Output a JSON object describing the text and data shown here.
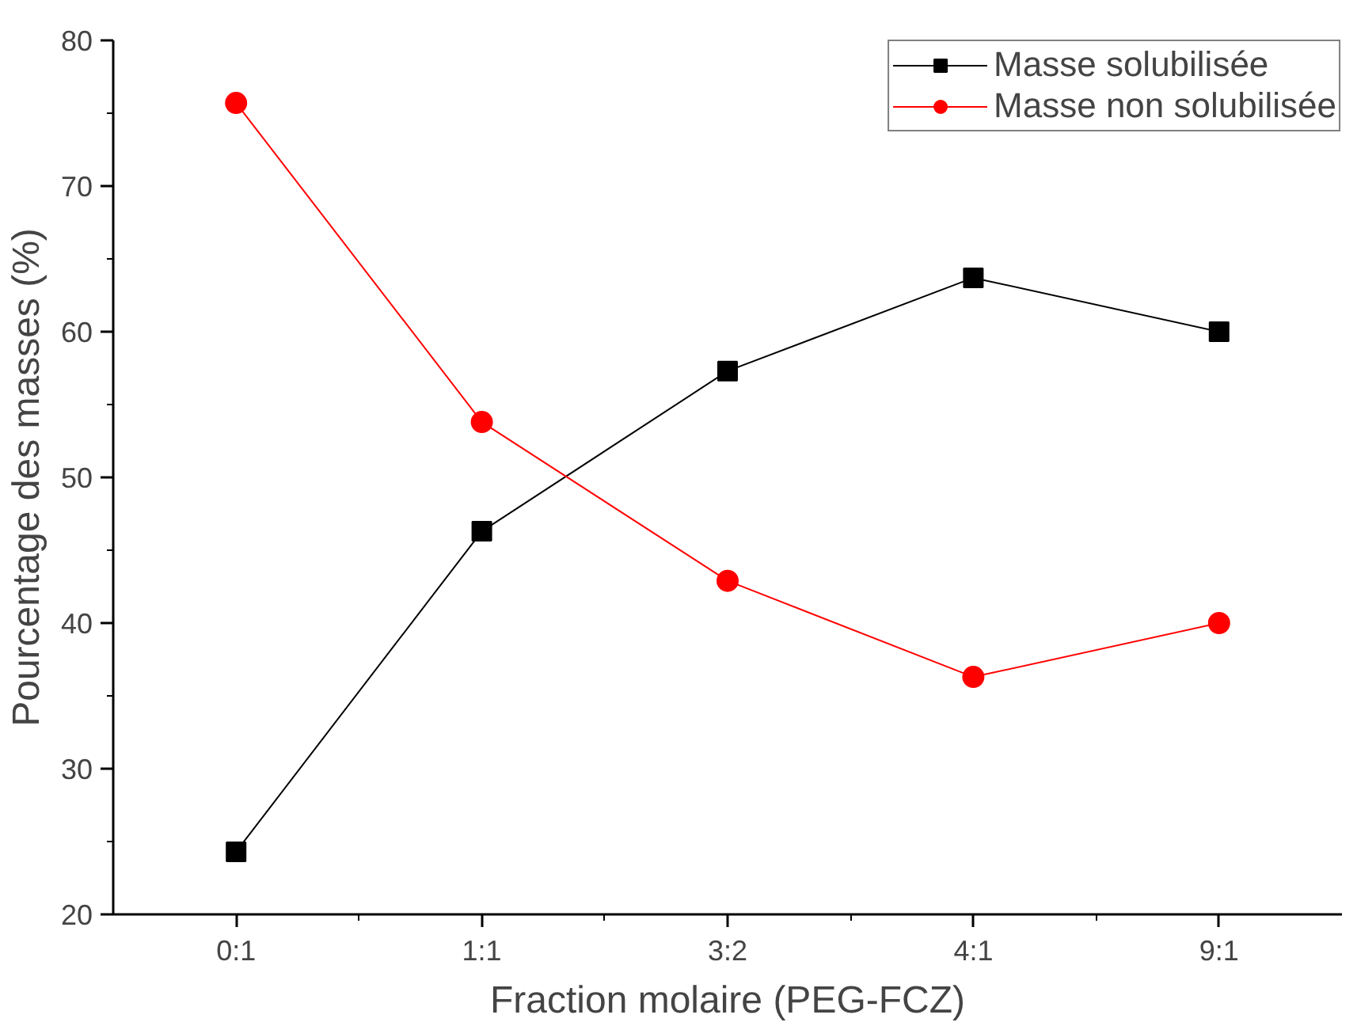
{
  "chart_data": {
    "type": "line",
    "xlabel": "Fraction molaire (PEG-FCZ)",
    "ylabel": "Pourcentage des masses (%)",
    "categories": [
      "0:1",
      "1:1",
      "3:2",
      "4:1",
      "9:1"
    ],
    "series": [
      {
        "name": "Masse solubilisée",
        "color": "#000000",
        "marker": "square",
        "values": [
          24.3,
          46.3,
          57.3,
          63.7,
          60.0
        ]
      },
      {
        "name": "Masse non solubilisée",
        "color": "#ff0000",
        "marker": "circle",
        "values": [
          75.7,
          53.8,
          42.9,
          36.3,
          40.0
        ]
      }
    ],
    "ylim": [
      20,
      80
    ],
    "yticks": [
      20,
      30,
      40,
      50,
      60,
      70,
      80
    ],
    "grid": false,
    "legend": "top right",
    "line_style": "solid"
  }
}
